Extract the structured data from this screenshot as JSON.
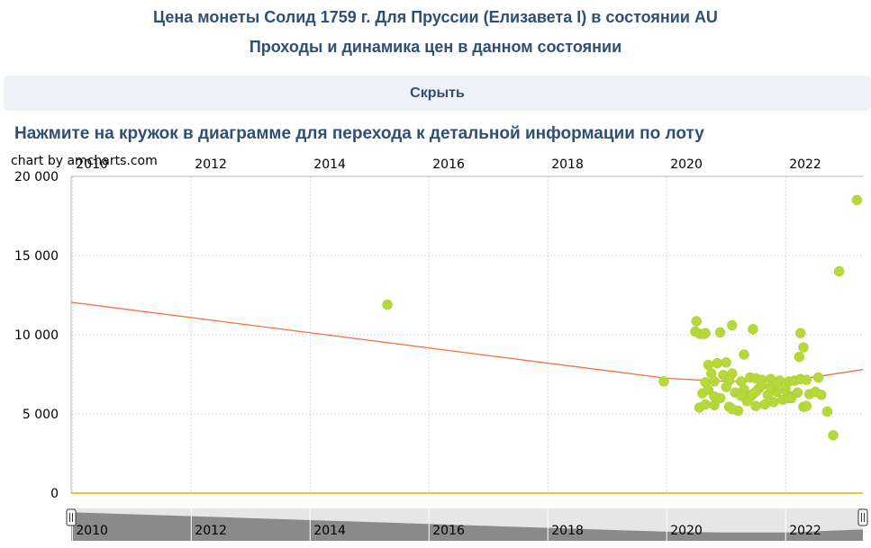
{
  "header": {
    "title": "Цена монеты Солид 1759 г. Для Пруссии (Елизавета I) в состоянии AU",
    "subtitle": "Проходы и динамика цен в данном состоянии"
  },
  "toggle": {
    "hide_label": "Скрыть"
  },
  "hint": "Нажмите на кружок в диаграмме для перехода к детальной информации по лоту",
  "credit": "chart by amcharts.com",
  "colors": {
    "points": "#b5d93a",
    "trend": "#f0733a",
    "zero_line": "#d9b300",
    "scrollbar": "#8a8a8a"
  },
  "chart_data": {
    "type": "scatter",
    "x_axis": {
      "range": [
        2009.98,
        2023.3
      ],
      "ticks": [
        2010,
        2012,
        2014,
        2016,
        2018,
        2020,
        2022
      ],
      "position": "top",
      "grid": true
    },
    "y_axis": {
      "range": [
        0,
        20000
      ],
      "ticks": [
        0,
        5000,
        10000,
        15000,
        20000
      ],
      "tick_labels": [
        "0",
        "5 000",
        "10 000",
        "15 000",
        "20 000"
      ],
      "grid": true
    },
    "trend": [
      [
        2009.98,
        12050
      ],
      [
        2020.0,
        7250
      ],
      [
        2021.0,
        7050
      ],
      [
        2022.0,
        7050
      ],
      [
        2023.3,
        7800
      ]
    ],
    "points": [
      [
        2015.3,
        11900
      ],
      [
        2019.95,
        7050
      ],
      [
        2020.5,
        10850
      ],
      [
        2020.48,
        10200
      ],
      [
        2020.56,
        10050
      ],
      [
        2020.65,
        10100
      ],
      [
        2020.63,
        10050
      ],
      [
        2021.1,
        10600
      ],
      [
        2020.9,
        10150
      ],
      [
        2021.45,
        10350
      ],
      [
        2022.25,
        10100
      ],
      [
        2022.3,
        9200
      ],
      [
        2022.23,
        8600
      ],
      [
        2021.3,
        8750
      ],
      [
        2020.7,
        8100
      ],
      [
        2020.85,
        8200
      ],
      [
        2021.0,
        8250
      ],
      [
        2020.75,
        7550
      ],
      [
        2020.95,
        7450
      ],
      [
        2021.1,
        7550
      ],
      [
        2020.65,
        7000
      ],
      [
        2020.8,
        7050
      ],
      [
        2021.05,
        7100
      ],
      [
        2021.25,
        7050
      ],
      [
        2021.4,
        7300
      ],
      [
        2021.5,
        7250
      ],
      [
        2021.6,
        7150
      ],
      [
        2021.75,
        7200
      ],
      [
        2021.9,
        7100
      ],
      [
        2022.05,
        7050
      ],
      [
        2022.15,
        7100
      ],
      [
        2022.25,
        7200
      ],
      [
        2022.35,
        7150
      ],
      [
        2022.55,
        7300
      ],
      [
        2020.6,
        6300
      ],
      [
        2020.7,
        6500
      ],
      [
        2020.8,
        6100
      ],
      [
        2020.9,
        6000
      ],
      [
        2021.0,
        6700
      ],
      [
        2021.15,
        6350
      ],
      [
        2021.3,
        6550
      ],
      [
        2021.4,
        6050
      ],
      [
        2021.55,
        6600
      ],
      [
        2021.7,
        6200
      ],
      [
        2021.85,
        6400
      ],
      [
        2022.0,
        6500
      ],
      [
        2022.1,
        6100
      ],
      [
        2022.2,
        6350
      ],
      [
        2022.4,
        6250
      ],
      [
        2022.5,
        6400
      ],
      [
        2022.6,
        6200
      ],
      [
        2020.55,
        5400
      ],
      [
        2020.65,
        5600
      ],
      [
        2020.8,
        5550
      ],
      [
        2021.05,
        5450
      ],
      [
        2021.2,
        5200
      ],
      [
        2021.35,
        5800
      ],
      [
        2021.5,
        5500
      ],
      [
        2021.65,
        5600
      ],
      [
        2021.8,
        5750
      ],
      [
        2021.95,
        5900
      ],
      [
        2022.1,
        6000
      ],
      [
        2022.3,
        5450
      ],
      [
        2022.35,
        5500
      ],
      [
        2022.7,
        5150
      ],
      [
        2021.1,
        5300
      ],
      [
        2021.25,
        6150
      ],
      [
        2021.45,
        6250
      ],
      [
        2021.6,
        6800
      ],
      [
        2021.75,
        6700
      ],
      [
        2021.85,
        6900
      ],
      [
        2022.0,
        6800
      ],
      [
        2022.05,
        6000
      ],
      [
        2021.5,
        6400
      ],
      [
        2022.8,
        3650
      ],
      [
        2022.9,
        14000
      ],
      [
        2023.2,
        18500
      ]
    ]
  },
  "scrollbar": {
    "labels": [
      "2010",
      "2012",
      "2014",
      "2016",
      "2018",
      "2020",
      "2022"
    ]
  }
}
